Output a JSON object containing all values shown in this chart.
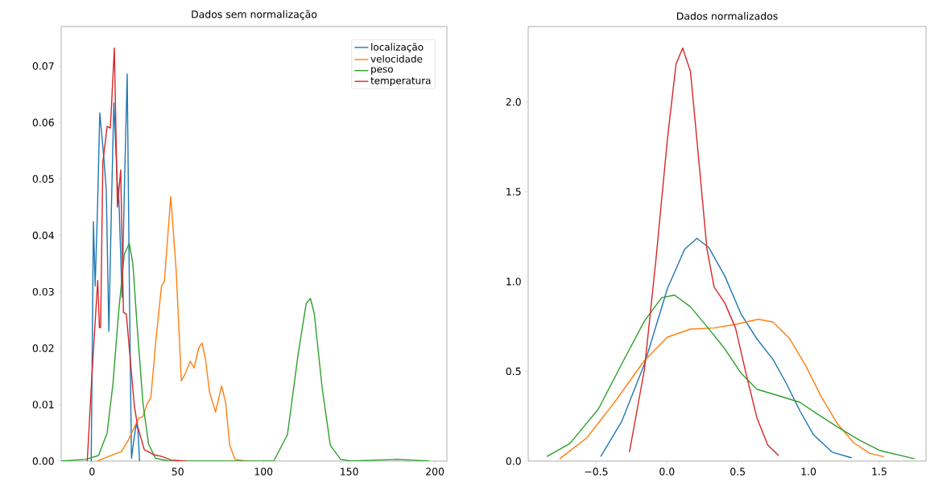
{
  "chart_data": [
    {
      "type": "line",
      "title": "Dados sem normalização",
      "xlim": [
        -18,
        207
      ],
      "ylim": [
        0,
        0.077
      ],
      "xticks": [
        0,
        50,
        100,
        150,
        200
      ],
      "yticks": [
        {
          "value": 0,
          "label": "0.00"
        },
        {
          "value": 0.01,
          "label": "0.01"
        },
        {
          "value": 0.02,
          "label": "0.02"
        },
        {
          "value": 0.03,
          "label": "0.03"
        },
        {
          "value": 0.04,
          "label": "0.04"
        },
        {
          "value": 0.05,
          "label": "0.05"
        },
        {
          "value": 0.06,
          "label": "0.06"
        },
        {
          "value": 0.07,
          "label": "0.07"
        }
      ],
      "legend": "top right",
      "marker": "none",
      "line_style": "solid",
      "series": [
        {
          "name": "localização",
          "color": "#1f77b4",
          "x": [
            -0.5,
            0.8,
            1.8,
            3.2,
            4.5,
            6.8,
            8.3,
            9.8,
            11.3,
            12.7,
            14.7,
            15.7,
            17.5,
            19.0,
            20.5,
            21.8,
            23.0,
            24.5,
            25.8,
            26.8,
            27.7
          ],
          "values": [
            0,
            0.0424,
            0.031,
            0.045,
            0.0617,
            0.054,
            0.048,
            0.023,
            0.045,
            0.0635,
            0.0495,
            0.046,
            0.029,
            0.05,
            0.0686,
            0.03,
            0.0005,
            0.004,
            0.0066,
            0.0055,
            0
          ]
        },
        {
          "name": "velocidade",
          "color": "#ff7f0e",
          "x": [
            3,
            11.3,
            17.2,
            21.3,
            24.7,
            27.2,
            29.7,
            32.2,
            34.3,
            37.2,
            40.5,
            42.2,
            45.9,
            49,
            52.1,
            54.5,
            57.3,
            59.5,
            62.3,
            64.2,
            66.2,
            68.5,
            72,
            75.6,
            77.9,
            80.3,
            83.4,
            90
          ],
          "values": [
            0,
            0.001,
            0.0017,
            0.0038,
            0.006,
            0.0076,
            0.0079,
            0.0102,
            0.0112,
            0.0213,
            0.031,
            0.0318,
            0.0469,
            0.0341,
            0.0142,
            0.0156,
            0.0177,
            0.0165,
            0.0201,
            0.0209,
            0.018,
            0.0123,
            0.0087,
            0.0133,
            0.0104,
            0.0028,
            0.0003,
            0
          ]
        },
        {
          "name": "peso",
          "color": "#2ca02c",
          "x": [
            -18,
            -3.7,
            3.8,
            8.8,
            12.2,
            15.5,
            18.8,
            21.7,
            23.8,
            26.3,
            29.7,
            33,
            37,
            45,
            106,
            114,
            120.2,
            124.9,
            127.4,
            129.6,
            134.3,
            139,
            145,
            151,
            178,
            196.7
          ],
          "values": [
            0,
            0.0003,
            0.001,
            0.005,
            0.0137,
            0.0264,
            0.0366,
            0.0386,
            0.035,
            0.0239,
            0.0102,
            0.003,
            0.0005,
            0,
            0,
            0.0047,
            0.0189,
            0.0279,
            0.0288,
            0.0262,
            0.0128,
            0.0028,
            0.0003,
            0,
            0.0003,
            0
          ]
        },
        {
          "name": "temperatura",
          "color": "#d62728",
          "x": [
            -2.8,
            -0.3,
            3.3,
            4.3,
            5.0,
            6.3,
            8.8,
            10.7,
            13,
            14.8,
            16.7,
            18.3,
            20,
            23,
            24.7,
            26.7,
            30.5,
            36.3,
            41,
            46,
            55
          ],
          "values": [
            0,
            0.014,
            0.032,
            0.0236,
            0.0237,
            0.053,
            0.0593,
            0.059,
            0.0732,
            0.045,
            0.0516,
            0.0264,
            0.026,
            0.0155,
            0.0097,
            0.006,
            0.002,
            0.0011,
            0.0008,
            0.0002,
            0
          ]
        }
      ]
    },
    {
      "type": "line",
      "title": "Dados normalizados",
      "xlim": [
        -0.98,
        1.83
      ],
      "ylim": [
        0,
        2.42
      ],
      "xticks": [
        {
          "value": -0.5,
          "label": "−0.5"
        },
        {
          "value": 0,
          "label": "0.0"
        },
        {
          "value": 0.5,
          "label": "0.5"
        },
        {
          "value": 1,
          "label": "1.0"
        },
        {
          "value": 1.5,
          "label": "1.5"
        }
      ],
      "yticks": [
        {
          "value": 0,
          "label": "0.0"
        },
        {
          "value": 0.5,
          "label": "0.5"
        },
        {
          "value": 1,
          "label": "1.0"
        },
        {
          "value": 1.5,
          "label": "1.5"
        },
        {
          "value": 2,
          "label": "2.0"
        }
      ],
      "marker": "none",
      "line_style": "solid",
      "series": [
        {
          "color": "#1f77b4",
          "x": [
            -0.468,
            -0.32,
            -0.159,
            0.003,
            0.125,
            0.212,
            0.295,
            0.409,
            0.523,
            0.636,
            0.75,
            0.845,
            0.939,
            1.034,
            1.166,
            1.305
          ],
          "values": [
            0.025,
            0.22,
            0.54,
            0.96,
            1.18,
            1.24,
            1.19,
            1.03,
            0.82,
            0.68,
            0.565,
            0.43,
            0.28,
            0.148,
            0.05,
            0.018
          ]
        },
        {
          "color": "#ff7f0e",
          "x": [
            -0.758,
            -0.565,
            -0.362,
            -0.159,
            0.003,
            0.165,
            0.333,
            0.485,
            0.646,
            0.75,
            0.864,
            0.977,
            1.091,
            1.205,
            1.318,
            1.432,
            1.532
          ],
          "values": [
            0.013,
            0.13,
            0.336,
            0.56,
            0.69,
            0.735,
            0.741,
            0.762,
            0.79,
            0.774,
            0.685,
            0.536,
            0.357,
            0.207,
            0.103,
            0.043,
            0.024
          ]
        },
        {
          "color": "#2ca02c",
          "x": [
            -0.849,
            -0.687,
            -0.484,
            -0.32,
            -0.159,
            -0.037,
            0.054,
            0.165,
            0.29,
            0.409,
            0.523,
            0.636,
            0.788,
            0.94,
            1.053,
            1.205,
            1.356,
            1.507,
            1.75
          ],
          "values": [
            0.025,
            0.097,
            0.29,
            0.54,
            0.78,
            0.91,
            0.924,
            0.86,
            0.742,
            0.625,
            0.49,
            0.4,
            0.364,
            0.327,
            0.267,
            0.19,
            0.118,
            0.058,
            0.013
          ]
        },
        {
          "color": "#d62728",
          "x": [
            -0.265,
            -0.159,
            -0.078,
            0.003,
            0.064,
            0.111,
            0.166,
            0.227,
            0.282,
            0.333,
            0.409,
            0.485,
            0.561,
            0.636,
            0.712,
            0.79
          ],
          "values": [
            0.05,
            0.51,
            1.12,
            1.79,
            2.21,
            2.3,
            2.17,
            1.66,
            1.185,
            0.97,
            0.88,
            0.74,
            0.48,
            0.24,
            0.09,
            0.03
          ]
        }
      ]
    }
  ]
}
